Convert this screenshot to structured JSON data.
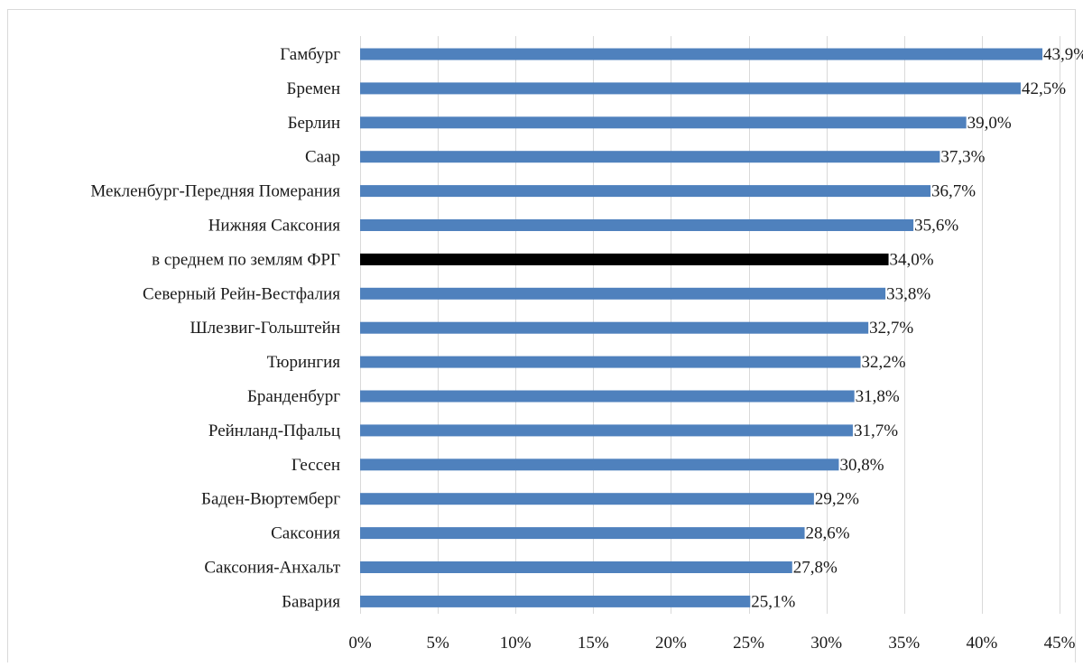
{
  "chart_data": {
    "type": "bar",
    "orientation": "horizontal",
    "categories": [
      "Гамбург",
      "Бремен",
      "Берлин",
      "Саар",
      "Мекленбург-Передняя Померания",
      "Нижняя Саксония",
      "в среднем по землям ФРГ",
      "Северный Рейн-Вестфалия",
      "Шлезвиг-Гольштейн",
      "Тюрингия",
      "Бранденбург",
      "Рейнланд-Пфальц",
      "Гессен",
      "Баден-Вюртемберг",
      "Саксония",
      "Саксония-Анхальт",
      "Бавария"
    ],
    "values": [
      43.9,
      42.5,
      39.0,
      37.3,
      36.7,
      35.6,
      34.0,
      33.8,
      32.7,
      32.2,
      31.8,
      31.7,
      30.8,
      29.2,
      28.6,
      27.8,
      25.1
    ],
    "value_labels": [
      "43,9%",
      "42,5%",
      "39,0%",
      "37,3%",
      "36,7%",
      "35,6%",
      "34,0%",
      "33,8%",
      "32,7%",
      "32,2%",
      "31,8%",
      "31,7%",
      "30,8%",
      "29,2%",
      "28,6%",
      "27,8%",
      "25,1%"
    ],
    "highlight_index": 6,
    "xlim": [
      0,
      45
    ],
    "xticks": [
      0,
      5,
      10,
      15,
      20,
      25,
      30,
      35,
      40,
      45
    ],
    "xtick_labels": [
      "0%",
      "5%",
      "10%",
      "15%",
      "20%",
      "25%",
      "30%",
      "35%",
      "40%",
      "45%"
    ],
    "title": "",
    "xlabel": "",
    "ylabel": "",
    "grid": "vertical",
    "legend": "none",
    "colors": {
      "bar": "#4f81bd",
      "highlight": "#000000",
      "grid": "#d9d9d9",
      "frame": "#d9d9d9"
    }
  }
}
